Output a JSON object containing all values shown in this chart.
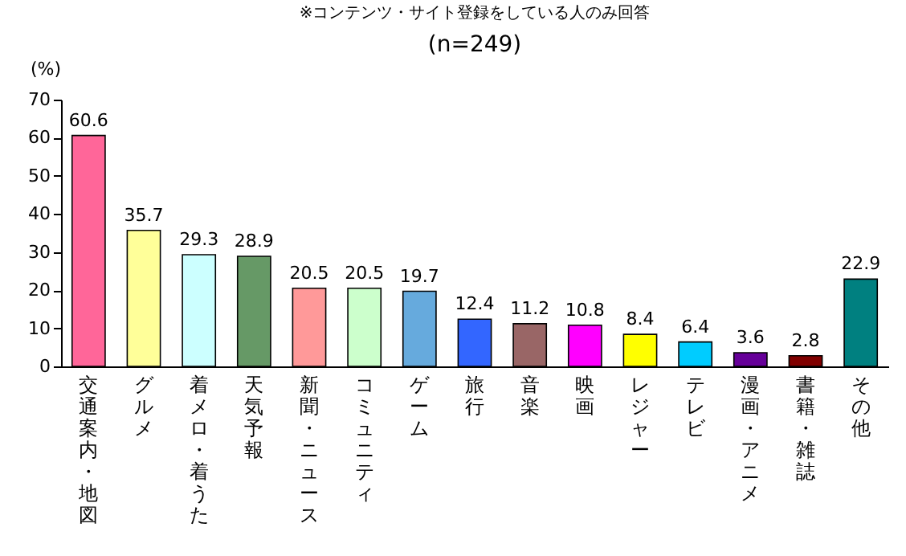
{
  "chart_data": {
    "type": "bar",
    "title": "(n=249)",
    "subtitle": "※コンテンツ・サイト登録をしている人のみ回答",
    "ylabel": "(%)",
    "categories": [
      "交通案内・地図",
      "グルメ",
      "着メロ・着うた",
      "天気予報",
      "新聞・ニュース",
      "コミュニティ",
      "ゲーム",
      "旅行",
      "音楽",
      "映画",
      "レジャー",
      "テレビ",
      "漫画・アニメ",
      "書籍・雑誌",
      "その他"
    ],
    "values": [
      60.6,
      35.7,
      29.3,
      28.9,
      20.5,
      20.5,
      19.7,
      12.4,
      11.2,
      10.8,
      8.4,
      6.4,
      3.6,
      2.8,
      22.9
    ],
    "colors": [
      "#ff6699",
      "#ffff99",
      "#ccffff",
      "#669966",
      "#ff9999",
      "#ccffcc",
      "#66aadd",
      "#3366ff",
      "#996666",
      "#ff00ff",
      "#ffff00",
      "#00ccff",
      "#660099",
      "#800000",
      "#008080"
    ],
    "ylim": [
      0,
      70
    ],
    "yticks": [
      0,
      10,
      20,
      30,
      40,
      50,
      60,
      70
    ],
    "grid": false,
    "data_labels": true
  }
}
